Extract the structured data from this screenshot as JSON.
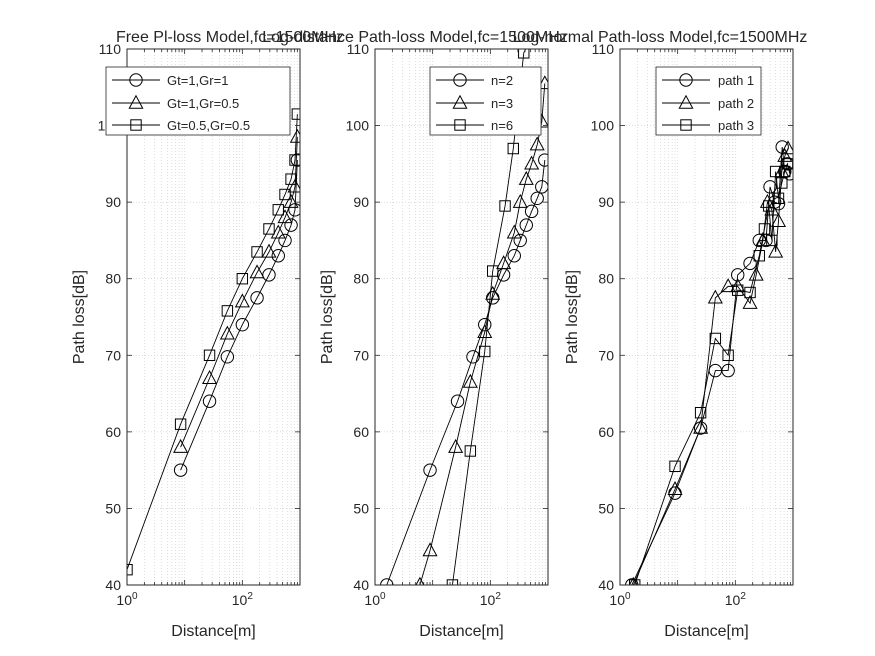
{
  "chart_data": [
    {
      "type": "line",
      "title": "Free Pl-loss Model,fc=1500MHz",
      "xlabel": "Distance[m]",
      "ylabel": "Path loss[dB]",
      "xscale": "log",
      "xlim": [
        1,
        1000
      ],
      "ylim": [
        40,
        110
      ],
      "xticks": [
        {
          "v": 1,
          "base": "10",
          "exp": "0"
        },
        {
          "v": 100,
          "base": "10",
          "exp": "2"
        }
      ],
      "yticks": [
        40,
        50,
        60,
        70,
        80,
        90,
        100,
        110
      ],
      "grid": true,
      "legend_position": "top-left",
      "series": [
        {
          "name": "Gt=1,Gr=1",
          "marker": "circle",
          "x": [
            8.5,
            27,
            55,
            100,
            180,
            290,
            420,
            550,
            700,
            820,
            900
          ],
          "y": [
            55,
            64,
            69.8,
            74,
            77.5,
            80.5,
            83,
            85,
            87,
            89,
            95.5
          ]
        },
        {
          "name": "Gt=1,Gr=0.5",
          "marker": "triangle",
          "x": [
            8.5,
            27,
            55,
            100,
            180,
            290,
            420,
            550,
            700,
            820,
            900
          ],
          "y": [
            58,
            67,
            72.8,
            77,
            80.8,
            83.5,
            86,
            88,
            90,
            92,
            98.5
          ]
        },
        {
          "name": "Gt=0.5,Gr=0.5",
          "marker": "square",
          "x": [
            1,
            8.5,
            27,
            55,
            100,
            180,
            290,
            420,
            550,
            700,
            820,
            900
          ],
          "y": [
            42,
            61,
            70,
            75.8,
            80,
            83.5,
            86.5,
            89,
            91,
            93,
            95.5,
            101.5
          ]
        }
      ]
    },
    {
      "type": "line",
      "title": "Log-distance Path-loss Model,fc=1500MHz",
      "xlabel": "Distance[m]",
      "ylabel": "Path loss[dB]",
      "xscale": "log",
      "xlim": [
        1,
        1000
      ],
      "ylim": [
        40,
        110
      ],
      "xticks": [
        {
          "v": 1,
          "base": "10",
          "exp": "0"
        },
        {
          "v": 100,
          "base": "10",
          "exp": "2"
        }
      ],
      "yticks": [
        40,
        50,
        60,
        70,
        80,
        90,
        100,
        110
      ],
      "grid": true,
      "legend_position": "top-right",
      "series": [
        {
          "name": "n=2",
          "marker": "circle",
          "x": [
            1.6,
            9,
            27,
            50,
            80,
            110,
            170,
            260,
            330,
            420,
            520,
            650,
            780,
            880
          ],
          "y": [
            40,
            55,
            64,
            69.8,
            74,
            77.5,
            80.5,
            83,
            85,
            87,
            88.8,
            90.5,
            92,
            95.5
          ]
        },
        {
          "name": "n=3",
          "marker": "triangle",
          "x": [
            6,
            9,
            25,
            45,
            80,
            110,
            170,
            260,
            330,
            420,
            520,
            650,
            780,
            880
          ],
          "y": [
            40,
            44.5,
            58,
            66.5,
            73,
            78,
            82,
            86,
            90,
            93,
            95,
            97.5,
            100.5,
            105.5
          ]
        },
        {
          "name": "n=6",
          "marker": "square",
          "x": [
            22,
            45,
            80,
            110,
            180,
            250,
            380,
            480,
            560
          ],
          "y": [
            40,
            57.5,
            70.5,
            81,
            89.5,
            97,
            109.5,
            111,
            112
          ]
        }
      ]
    },
    {
      "type": "line",
      "title": "Log-normal Path-loss Model,fc=1500MHz",
      "xlabel": "Distance[m]",
      "ylabel": "Path loss[dB]",
      "xscale": "log",
      "xlim": [
        1,
        1000
      ],
      "ylim": [
        40,
        110
      ],
      "xticks": [
        {
          "v": 1,
          "base": "10",
          "exp": "0"
        },
        {
          "v": 100,
          "base": "10",
          "exp": "2"
        }
      ],
      "yticks": [
        40,
        50,
        60,
        70,
        80,
        90,
        100,
        110
      ],
      "grid": true,
      "legend_position": "top-left",
      "series": [
        {
          "name": "path 1",
          "marker": "circle",
          "x": [
            1.6,
            9,
            25,
            45,
            75,
            110,
            180,
            260,
            340,
            400,
            480,
            560,
            650,
            720,
            800,
            880
          ],
          "y": [
            40,
            52,
            60.5,
            68,
            68,
            80.5,
            82,
            85,
            85,
            92,
            90,
            89.8,
            97.2,
            94,
            95,
            93.7
          ]
        },
        {
          "name": "path 2",
          "marker": "triangle",
          "x": [
            1.7,
            9,
            25,
            45,
            75,
            110,
            180,
            230,
            300,
            360,
            430,
            500,
            560,
            640,
            720,
            820
          ],
          "y": [
            40,
            52.5,
            60.5,
            77.5,
            79,
            79,
            76.8,
            80.5,
            85,
            90,
            89,
            83.5,
            87.5,
            94,
            96,
            97
          ]
        },
        {
          "name": "path 3",
          "marker": "square",
          "x": [
            1.8,
            9,
            25,
            45,
            75,
            110,
            180,
            260,
            320,
            380,
            430,
            500,
            560,
            640,
            720,
            800
          ],
          "y": [
            40,
            55.5,
            62.5,
            72.2,
            70,
            78.5,
            78.2,
            83,
            86.5,
            89.5,
            85,
            94,
            90.5,
            92.5,
            94,
            95
          ]
        }
      ]
    }
  ]
}
